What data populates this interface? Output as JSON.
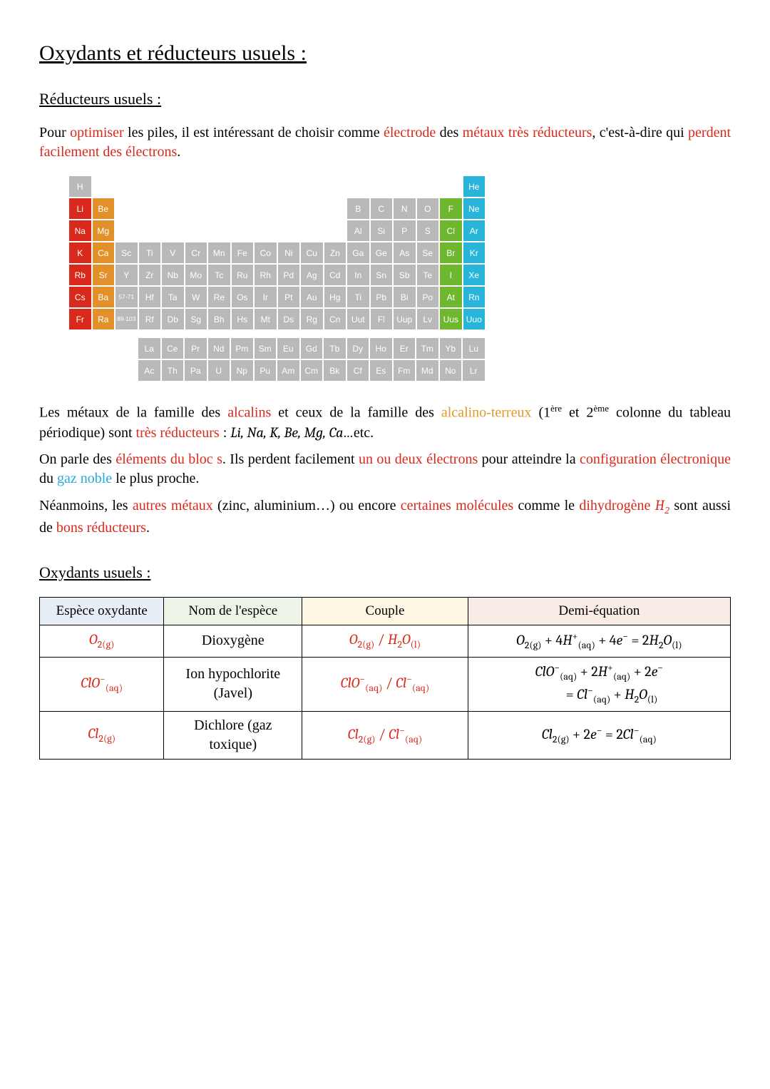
{
  "title": "Oxydants et réducteurs usuels :",
  "section1": {
    "heading": "Réducteurs usuels :",
    "intro_a": "Pour ",
    "intro_opt": "optimiser",
    "intro_b": " les piles, il est intéressant de choisir comme ",
    "intro_elec": "électrode",
    "intro_c": " des ",
    "intro_met": "métaux très réducteurs",
    "intro_d": ", c'est-à-dire qui ",
    "intro_perd": "perdent facilement des électrons",
    "intro_e": "."
  },
  "periodic": {
    "rows": [
      [
        [
          "H",
          "gy"
        ],
        [
          "",
          "e"
        ],
        [
          "",
          "e"
        ],
        [
          "",
          "e"
        ],
        [
          "",
          "e"
        ],
        [
          "",
          "e"
        ],
        [
          "",
          "e"
        ],
        [
          "",
          "e"
        ],
        [
          "",
          "e"
        ],
        [
          "",
          "e"
        ],
        [
          "",
          "e"
        ],
        [
          "",
          "e"
        ],
        [
          "",
          "e"
        ],
        [
          "",
          "e"
        ],
        [
          "",
          "e"
        ],
        [
          "",
          "e"
        ],
        [
          "",
          "e"
        ],
        [
          "He",
          "cy"
        ]
      ],
      [
        [
          "Li",
          "rd"
        ],
        [
          "Be",
          "or"
        ],
        [
          "",
          "e"
        ],
        [
          "",
          "e"
        ],
        [
          "",
          "e"
        ],
        [
          "",
          "e"
        ],
        [
          "",
          "e"
        ],
        [
          "",
          "e"
        ],
        [
          "",
          "e"
        ],
        [
          "",
          "e"
        ],
        [
          "",
          "e"
        ],
        [
          "",
          "e"
        ],
        [
          "B",
          "gy"
        ],
        [
          "C",
          "gy"
        ],
        [
          "N",
          "gy"
        ],
        [
          "O",
          "gy"
        ],
        [
          "F",
          "gr"
        ],
        [
          "Ne",
          "cy"
        ]
      ],
      [
        [
          "Na",
          "rd"
        ],
        [
          "Mg",
          "or"
        ],
        [
          "",
          "e"
        ],
        [
          "",
          "e"
        ],
        [
          "",
          "e"
        ],
        [
          "",
          "e"
        ],
        [
          "",
          "e"
        ],
        [
          "",
          "e"
        ],
        [
          "",
          "e"
        ],
        [
          "",
          "e"
        ],
        [
          "",
          "e"
        ],
        [
          "",
          "e"
        ],
        [
          "Al",
          "gy"
        ],
        [
          "Si",
          "gy"
        ],
        [
          "P",
          "gy"
        ],
        [
          "S",
          "gy"
        ],
        [
          "Cl",
          "gr"
        ],
        [
          "Ar",
          "cy"
        ]
      ],
      [
        [
          "K",
          "rd"
        ],
        [
          "Ca",
          "or"
        ],
        [
          "Sc",
          "gy"
        ],
        [
          "Ti",
          "gy"
        ],
        [
          "V",
          "gy"
        ],
        [
          "Cr",
          "gy"
        ],
        [
          "Mn",
          "gy"
        ],
        [
          "Fe",
          "gy"
        ],
        [
          "Co",
          "gy"
        ],
        [
          "Ni",
          "gy"
        ],
        [
          "Cu",
          "gy"
        ],
        [
          "Zn",
          "gy"
        ],
        [
          "Ga",
          "gy"
        ],
        [
          "Ge",
          "gy"
        ],
        [
          "As",
          "gy"
        ],
        [
          "Se",
          "gy"
        ],
        [
          "Br",
          "gr"
        ],
        [
          "Kr",
          "cy"
        ]
      ],
      [
        [
          "Rb",
          "rd"
        ],
        [
          "Sr",
          "or"
        ],
        [
          "Y",
          "gy"
        ],
        [
          "Zr",
          "gy"
        ],
        [
          "Nb",
          "gy"
        ],
        [
          "Mo",
          "gy"
        ],
        [
          "Tc",
          "gy"
        ],
        [
          "Ru",
          "gy"
        ],
        [
          "Rh",
          "gy"
        ],
        [
          "Pd",
          "gy"
        ],
        [
          "Ag",
          "gy"
        ],
        [
          "Cd",
          "gy"
        ],
        [
          "In",
          "gy"
        ],
        [
          "Sn",
          "gy"
        ],
        [
          "Sb",
          "gy"
        ],
        [
          "Te",
          "gy"
        ],
        [
          "I",
          "gr"
        ],
        [
          "Xe",
          "cy"
        ]
      ],
      [
        [
          "Cs",
          "rd"
        ],
        [
          "Ba",
          "or"
        ],
        [
          "57-71",
          "gy",
          "xs"
        ],
        [
          "Hf",
          "gy"
        ],
        [
          "Ta",
          "gy"
        ],
        [
          "W",
          "gy"
        ],
        [
          "Re",
          "gy"
        ],
        [
          "Os",
          "gy"
        ],
        [
          "Ir",
          "gy"
        ],
        [
          "Pt",
          "gy"
        ],
        [
          "Au",
          "gy"
        ],
        [
          "Hg",
          "gy"
        ],
        [
          "Ti",
          "gy"
        ],
        [
          "Pb",
          "gy"
        ],
        [
          "Bi",
          "gy"
        ],
        [
          "Po",
          "gy"
        ],
        [
          "At",
          "gr"
        ],
        [
          "Rn",
          "cy"
        ]
      ],
      [
        [
          "Fr",
          "rd"
        ],
        [
          "Ra",
          "or"
        ],
        [
          "89-103",
          "gy",
          "xs"
        ],
        [
          "Rf",
          "gy"
        ],
        [
          "Db",
          "gy"
        ],
        [
          "Sg",
          "gy"
        ],
        [
          "Bh",
          "gy"
        ],
        [
          "Hs",
          "gy"
        ],
        [
          "Mt",
          "gy"
        ],
        [
          "Ds",
          "gy"
        ],
        [
          "Rg",
          "gy"
        ],
        [
          "Cn",
          "gy"
        ],
        [
          "Uut",
          "gy"
        ],
        [
          "Fl",
          "gy"
        ],
        [
          "Uup",
          "gy"
        ],
        [
          "Lv",
          "gy"
        ],
        [
          "Uus",
          "gr"
        ],
        [
          "Uuo",
          "cy"
        ]
      ]
    ],
    "lanth": [
      [
        [
          "La",
          "gy"
        ],
        [
          "Ce",
          "gy"
        ],
        [
          "Pr",
          "gy"
        ],
        [
          "Nd",
          "gy"
        ],
        [
          "Pm",
          "gy"
        ],
        [
          "Sm",
          "gy"
        ],
        [
          "Eu",
          "gy"
        ],
        [
          "Gd",
          "gy"
        ],
        [
          "Tb",
          "gy"
        ],
        [
          "Dy",
          "gy"
        ],
        [
          "Ho",
          "gy"
        ],
        [
          "Er",
          "gy"
        ],
        [
          "Tm",
          "gy"
        ],
        [
          "Yb",
          "gy"
        ],
        [
          "Lu",
          "gy"
        ]
      ],
      [
        [
          "Ac",
          "gy"
        ],
        [
          "Th",
          "gy"
        ],
        [
          "Pa",
          "gy"
        ],
        [
          "U",
          "gy"
        ],
        [
          "Np",
          "gy"
        ],
        [
          "Pu",
          "gy"
        ],
        [
          "Am",
          "gy"
        ],
        [
          "Cm",
          "gy"
        ],
        [
          "Bk",
          "gy"
        ],
        [
          "Cf",
          "gy"
        ],
        [
          "Es",
          "gy"
        ],
        [
          "Fm",
          "gy"
        ],
        [
          "Md",
          "gy"
        ],
        [
          "No",
          "gy"
        ],
        [
          "Lr",
          "gy"
        ]
      ]
    ]
  },
  "para2": {
    "a": "Les métaux de la famille des ",
    "alc": "alcalins",
    "b": " et ceux de la famille des ",
    "alcter": "alcalino-terreux",
    "c": " (1",
    "ere": "ère",
    "d": " et 2",
    "eme": "ème",
    "e": " colonne du tableau périodique) sont ",
    "tr": "très réducteurs",
    "f": " : ",
    "list": "Li, Na, K, Be, Mg, Ca…",
    "g": "etc."
  },
  "para3": {
    "a": "On parle des ",
    "blocs": "éléments du bloc s",
    "b": ". Ils perdent facilement ",
    "un": "un ou deux électrons",
    "c": " pour atteindre la ",
    "conf": "configuration électronique",
    "d": " du ",
    "gaz": "gaz noble",
    "e": " le plus proche."
  },
  "para4": {
    "a": "Néanmoins, les ",
    "am": "autres métaux",
    "b": " (zinc, aluminium…) ou encore ",
    "cm": "certaines molécules",
    "c": " comme le ",
    "dh": "dihydrogène ",
    "h2_e": "H",
    "h2_s": "2",
    "d": " sont aussi de ",
    "br": "bons réducteurs",
    "e": "."
  },
  "section2": {
    "heading": "Oxydants usuels :",
    "headers": [
      "Espèce oxydante",
      "Nom de l'espèce",
      "Couple",
      "Demi-équation"
    ],
    "header_bg": [
      "#e8eef5",
      "#eef3e8",
      "#fcf6e3",
      "#f9ece7"
    ],
    "rows": [
      {
        "species_html": "<span class='el'>O</span><span class='st'>2(g)</span>",
        "name": "Dioxygène",
        "couple_html": "<span class='el'>O</span><span class='st'>2(g)</span> / <span class='el'>H</span><span class='st'>2</span><span class='el'>O</span><span class='st'>(l)</span>",
        "eq_html": "<span class='el'>O</span><span class='st'>2(g)</span> + 4<span class='el'>H</span><span class='a'>+</span><span class='st'>(aq)</span> + 4<span class='el'>e</span><span class='a'>−</span> = 2<span class='el'>H</span><span class='st'>2</span><span class='el'>O</span><span class='st'>(l)</span>"
      },
      {
        "species_html": "<span class='el'>ClO</span><span class='a'>−</span><span class='st'>(aq)</span>",
        "name": "Ion hypochlorite (Javel)",
        "couple_html": "<span class='el'>ClO</span><span class='a'>−</span><span class='st'>(aq)</span> / <span class='el'>Cl</span><span class='a'>−</span><span class='st'>(aq)</span>",
        "eq_html": "<span class='el'>ClO</span><span class='a'>−</span><span class='st'>(aq)</span> + 2<span class='el'>H</span><span class='a'>+</span><span class='st'>(aq)</span> + 2<span class='el'>e</span><span class='a'>−</span><br>&nbsp;&nbsp;&nbsp;&nbsp;&nbsp;&nbsp;&nbsp;&nbsp;= <span class='el'>Cl</span><span class='a'>−</span><span class='st'>(aq)</span> + <span class='el'>H</span><span class='st'>2</span><span class='el'>O</span><span class='st'>(l)</span>"
      },
      {
        "species_html": "<span class='el'>Cl</span><span class='st'>2(g)</span>",
        "name": "Dichlore (gaz toxique)",
        "couple_html": "<span class='el'>Cl</span><span class='st'>2(g)</span> / <span class='el'>Cl</span><span class='a'>−</span><span class='st'>(aq)</span>",
        "eq_html": "<span class='el'>Cl</span><span class='st'>2(g)</span> + 2<span class='el'>e</span><span class='a'>−</span> = 2<span class='el'>Cl</span><span class='a'>−</span><span class='st'>(aq)</span>"
      }
    ],
    "col_widths": [
      "18%",
      "20%",
      "24%",
      "38%"
    ]
  }
}
